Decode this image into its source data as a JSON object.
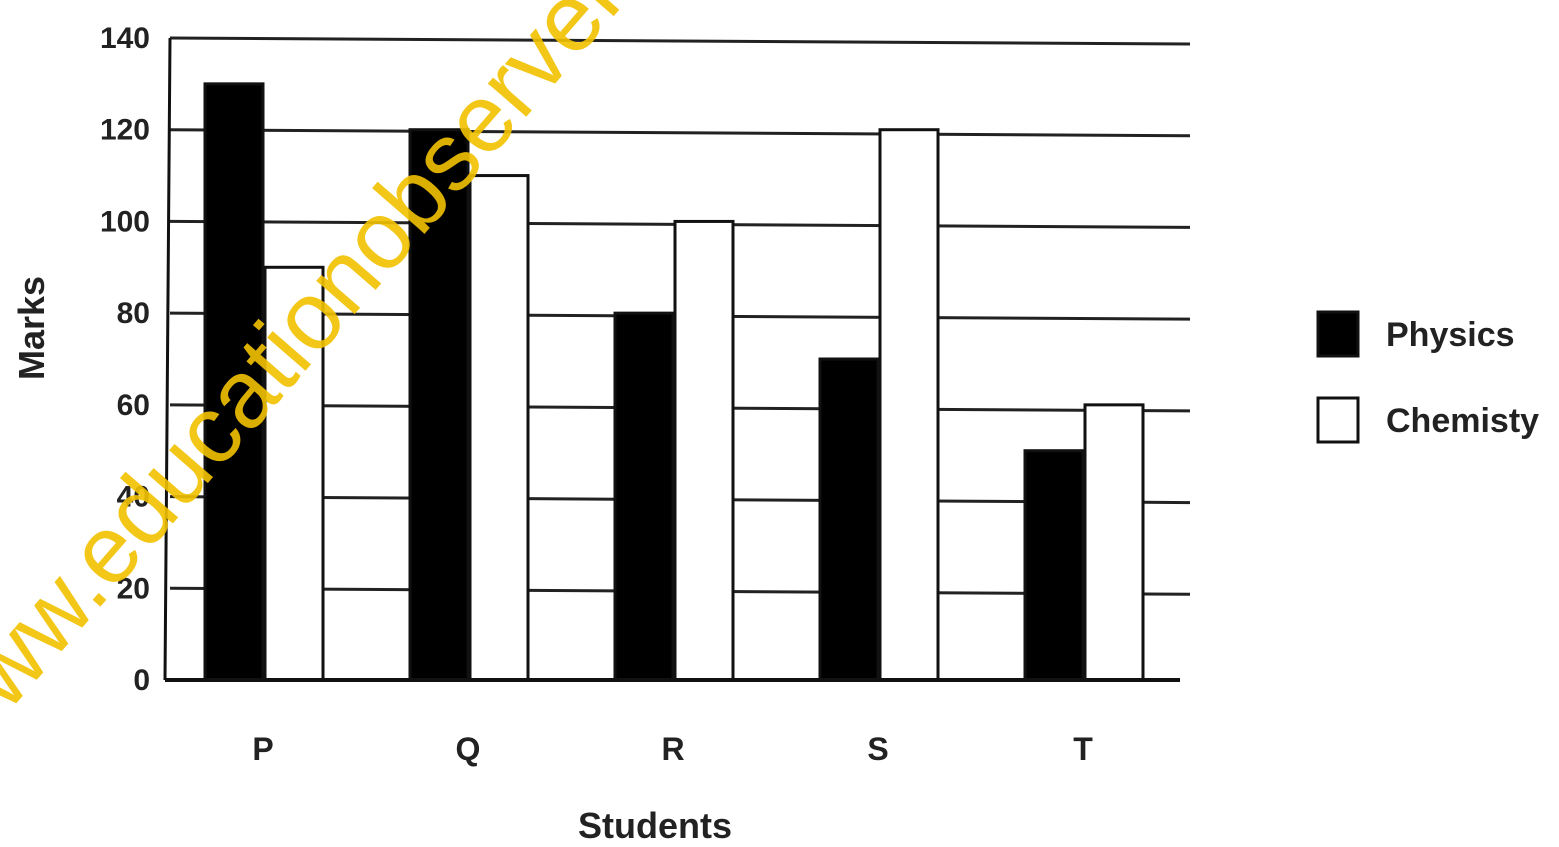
{
  "watermark": "www.educationobservers.com",
  "chart_data": {
    "type": "bar",
    "xlabel": "Students",
    "ylabel": "Marks",
    "ylim": [
      0,
      140
    ],
    "yticks": [
      0,
      20,
      40,
      60,
      80,
      100,
      120,
      140
    ],
    "categories": [
      "P",
      "Q",
      "R",
      "S",
      "T"
    ],
    "series": [
      {
        "name": "Physics",
        "color": "#000000",
        "values": [
          130,
          120,
          80,
          70,
          50
        ]
      },
      {
        "name": "Chemisty",
        "color": "#ffffff",
        "values": [
          90,
          110,
          100,
          120,
          60
        ]
      }
    ],
    "grid": true,
    "legend_position": "right"
  }
}
